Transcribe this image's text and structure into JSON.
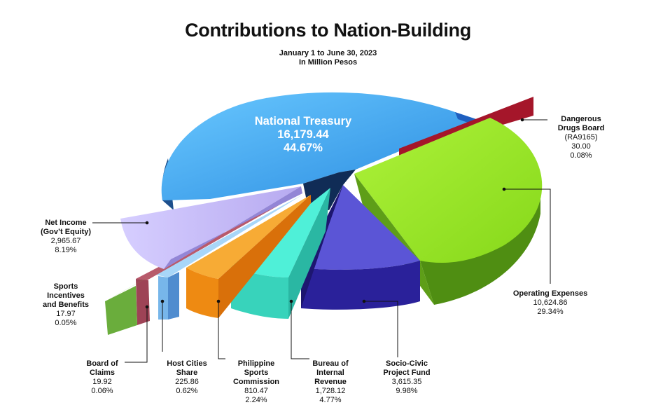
{
  "chart_data": {
    "type": "pie",
    "title": "Contributions to Nation-Building",
    "subtitle_lines": [
      "January 1 to June 30, 2023",
      "In Million Pesos"
    ],
    "slices": [
      {
        "label": "National Treasury",
        "value": "16,179.44",
        "percent": "44.67%",
        "value_num": 16179.44,
        "color": "#3b9de8"
      },
      {
        "label": "Dangerous\nDrugs Board",
        "sublabel": "(RA9165)",
        "value": "30.00",
        "percent": "0.08%",
        "value_num": 30.0,
        "color": "#9c1b24"
      },
      {
        "label": "Operating Expenses",
        "value": "10,624.86",
        "percent": "29.34%",
        "value_num": 10624.86,
        "color": "#8fe31c"
      },
      {
        "label": "Socio-Civic\nProject Fund",
        "value": "3,615.35",
        "percent": "9.98%",
        "value_num": 3615.35,
        "color": "#3f36b8"
      },
      {
        "label": "Bureau of\nInternal\nRevenue",
        "value": "1,728.12",
        "percent": "4.77%",
        "value_num": 1728.12,
        "color": "#3fe3cb"
      },
      {
        "label": "Philippine\nSports\nCommission",
        "value": "810.47",
        "percent": "2.24%",
        "value_num": 810.47,
        "color": "#f39a1f"
      },
      {
        "label": "Host Cities\nShare",
        "value": "225.86",
        "percent": "0.62%",
        "value_num": 225.86,
        "color": "#8ec6f2"
      },
      {
        "label": "Board of\nClaims",
        "value": "19.92",
        "percent": "0.06%",
        "value_num": 19.92,
        "color": "#9e4356"
      },
      {
        "label": "Sports\nIncentives\nand Benefits",
        "value": "17.97",
        "percent": "0.05%",
        "value_num": 17.97,
        "color": "#6aad3c"
      },
      {
        "label": "Net Income\n(Gov’t Equity)",
        "value": "2,965.67",
        "percent": "8.19%",
        "value_num": 2965.67,
        "color": "#c7bdf5"
      }
    ]
  }
}
